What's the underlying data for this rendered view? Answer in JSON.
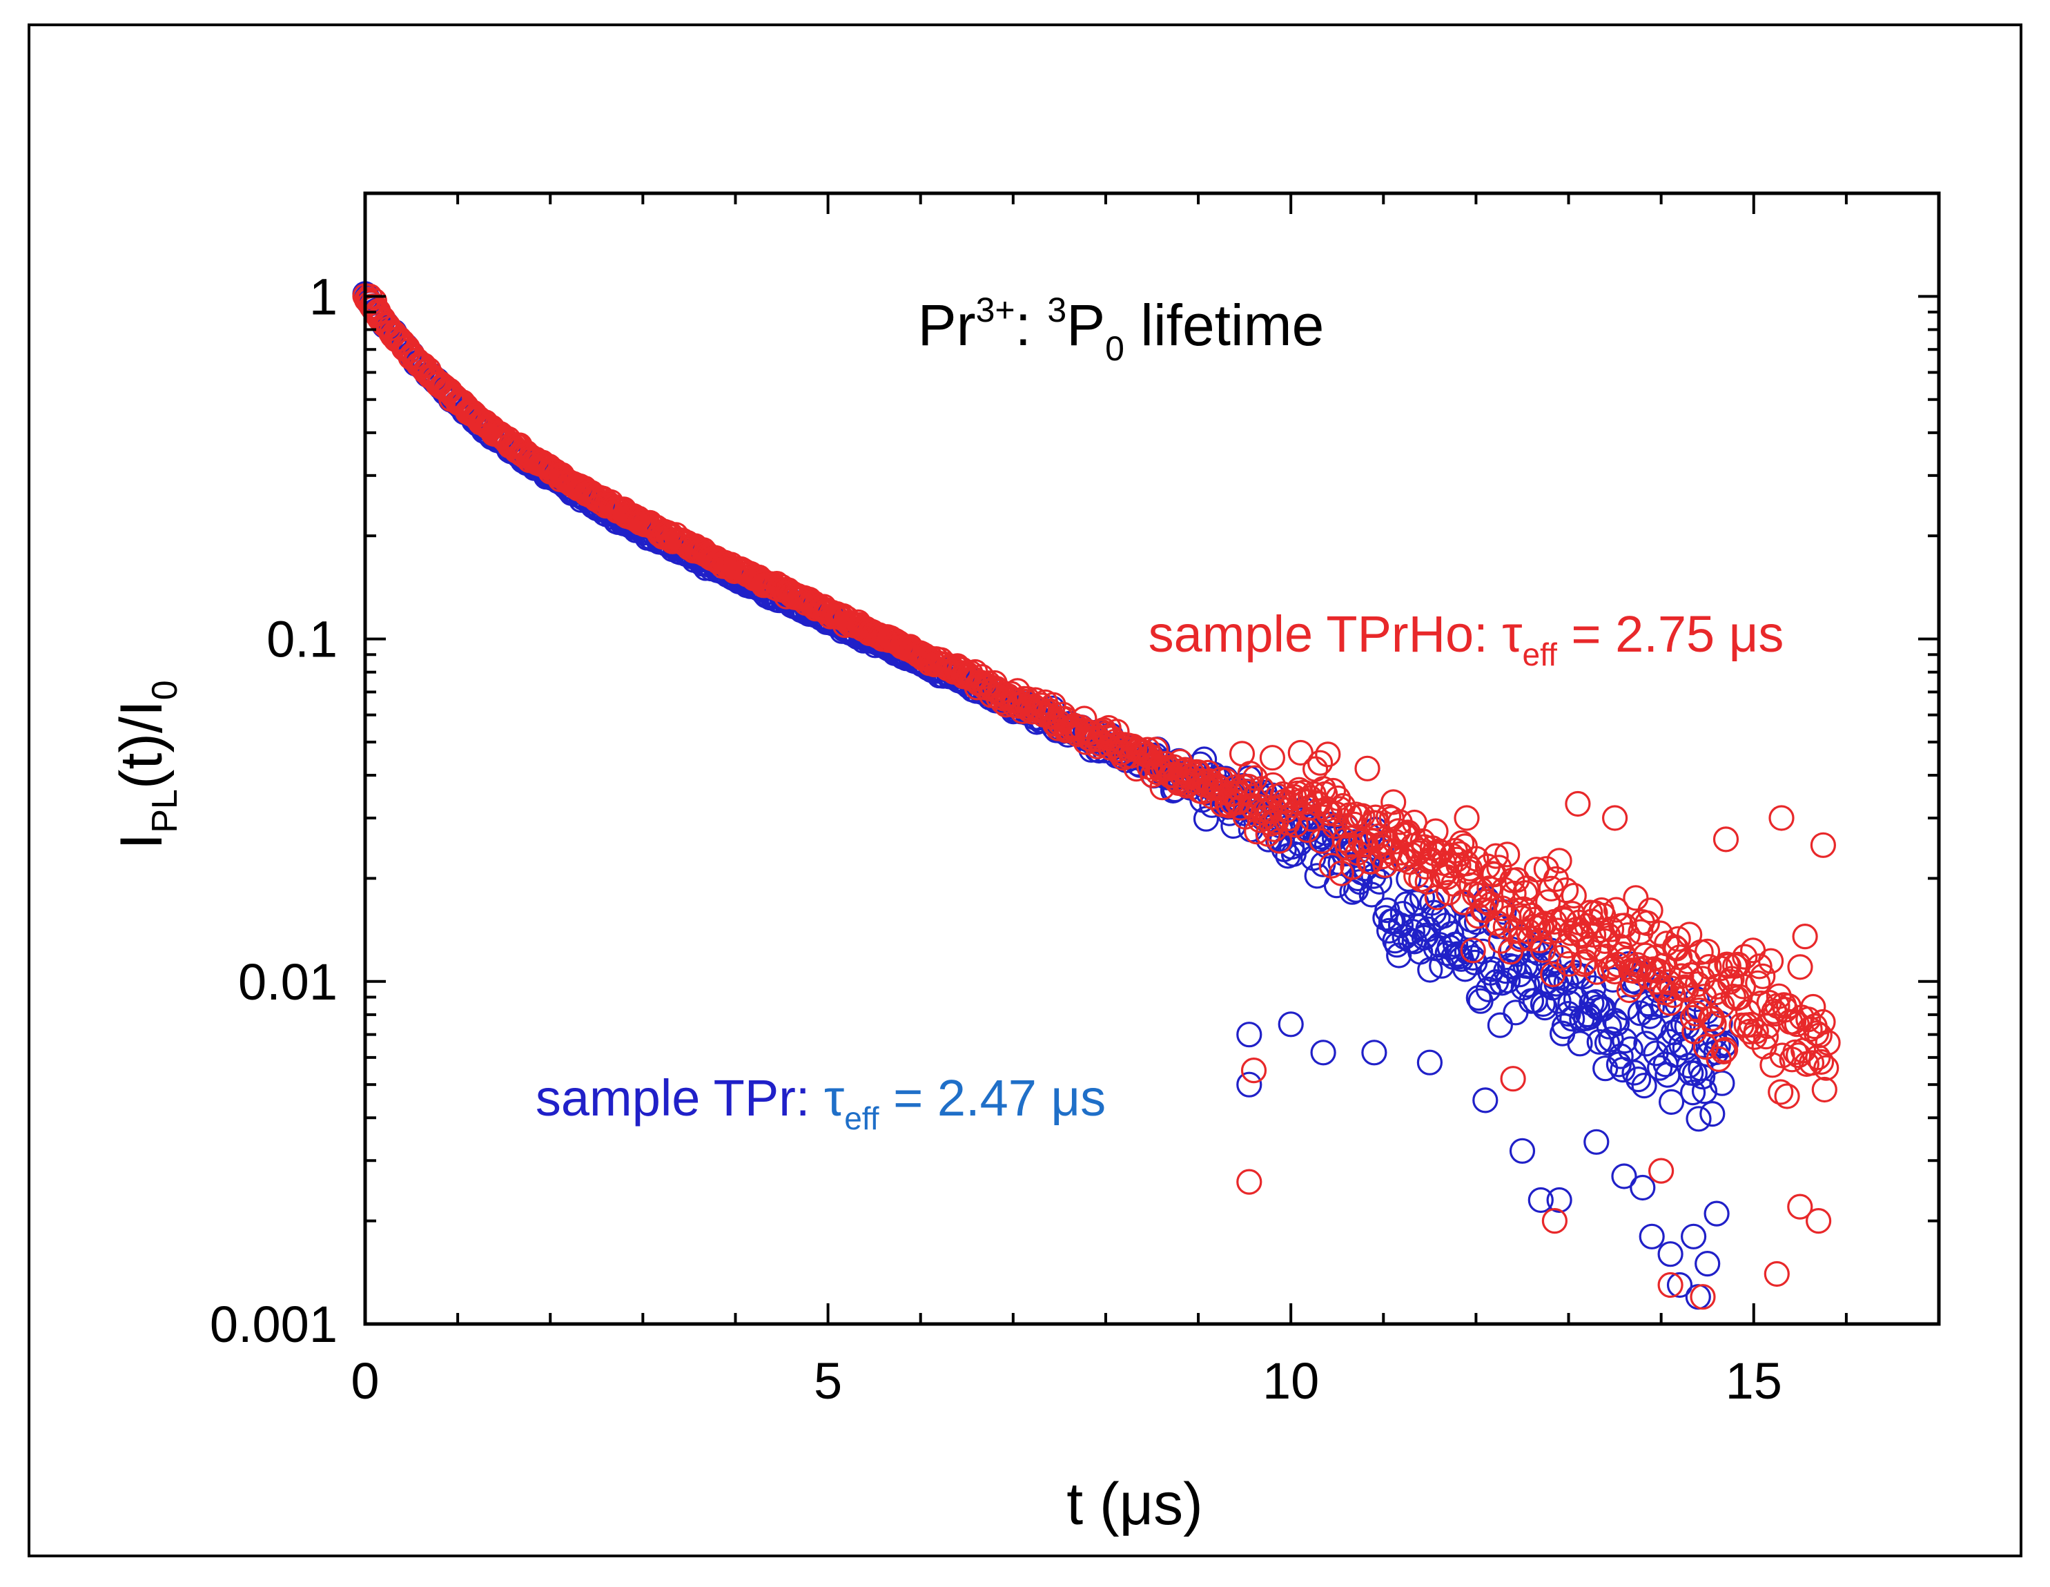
{
  "chart_data": {
    "type": "scatter",
    "title_parts": {
      "ion": "Pr",
      "ion_sup": "3+",
      "sep": ": ",
      "level_sup": "3",
      "level": "P",
      "level_sub": "0",
      "rest": " lifetime"
    },
    "xlabel_parts": {
      "text": "t (μs)"
    },
    "ylabel_parts": {
      "base": "I",
      "sub": "PL",
      "mid": "(t)/I",
      "sub2": "0"
    },
    "x_axis": {
      "range": [
        0,
        17
      ],
      "ticks": [
        0,
        5,
        10,
        15
      ],
      "tick_labels": [
        "0",
        "5",
        "10",
        "15"
      ],
      "minor_step": 1
    },
    "y_axis": {
      "scale": "log",
      "range": [
        0.001,
        2.0
      ],
      "ticks": [
        1,
        0.1,
        0.01,
        0.001
      ],
      "tick_labels": [
        "1",
        "0.1",
        "0.01",
        "0.001"
      ]
    },
    "colors": {
      "TPr": "#2020c8",
      "TPrHo": "#e8282a",
      "tau_blue": "#1f6fc8",
      "axis": "#000000"
    },
    "series": [
      {
        "name": "sample TPr",
        "color": "#2020c8",
        "decay": {
          "a1": 0.55,
          "tau1": 0.75,
          "a2": 0.45,
          "tau2": 3.6
        },
        "t_range": [
          0,
          14.7
        ],
        "extra_points": [
          [
            9.55,
            0.007
          ],
          [
            9.55,
            0.005
          ],
          [
            10.0,
            0.0075
          ],
          [
            10.35,
            0.0062
          ],
          [
            10.9,
            0.0062
          ],
          [
            11.5,
            0.0058
          ],
          [
            12.1,
            0.0045
          ],
          [
            12.5,
            0.0032
          ],
          [
            12.7,
            0.0023
          ],
          [
            12.9,
            0.0023
          ],
          [
            13.3,
            0.0034
          ],
          [
            13.6,
            0.0027
          ],
          [
            13.9,
            0.0018
          ],
          [
            14.1,
            0.0016
          ],
          [
            14.2,
            0.0013
          ],
          [
            14.35,
            0.0018
          ],
          [
            14.5,
            0.0015
          ],
          [
            14.6,
            0.0021
          ],
          [
            14.4,
            0.0012
          ],
          [
            13.8,
            0.0025
          ]
        ]
      },
      {
        "name": "sample TPrHo",
        "color": "#e8282a",
        "decay": {
          "a1": 0.5,
          "tau1": 0.7,
          "a2": 0.5,
          "tau2": 3.5
        },
        "t_range": [
          0,
          15.8
        ],
        "extra_points": [
          [
            0.05,
            1.0
          ],
          [
            0.1,
            0.97
          ],
          [
            9.55,
            0.0026
          ],
          [
            9.6,
            0.0055
          ],
          [
            12.85,
            0.002
          ],
          [
            14.1,
            0.0013
          ],
          [
            14.45,
            0.0012
          ],
          [
            15.25,
            0.0014
          ],
          [
            15.7,
            0.002
          ],
          [
            15.5,
            0.0022
          ],
          [
            10.4,
            0.046
          ],
          [
            11.9,
            0.03
          ],
          [
            13.1,
            0.033
          ],
          [
            13.5,
            0.03
          ],
          [
            15.3,
            0.03
          ],
          [
            14.7,
            0.026
          ],
          [
            15.75,
            0.025
          ],
          [
            9.8,
            0.045
          ],
          [
            14.0,
            0.0028
          ],
          [
            12.4,
            0.0052
          ]
        ]
      }
    ],
    "annotations": [
      {
        "label": "sample TPrHo: ",
        "tau": "τ",
        "tau_sub": "eff",
        "value": " = 2.75 μs",
        "color": "#e8282a",
        "at": [
          12.0,
          0.088
        ]
      },
      {
        "label": "sample TPr: ",
        "tau": "τ",
        "tau_sub": "eff",
        "value": " = 2.47 μs",
        "color": "#2020c8",
        "value_color": "#1f6fc8",
        "at": [
          3.8,
          0.0052
        ]
      }
    ]
  }
}
